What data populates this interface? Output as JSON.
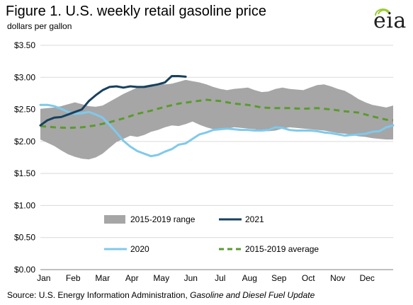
{
  "header": {
    "title": "Figure 1. U.S. weekly retail gasoline price",
    "subtitle": "dollars per gallon"
  },
  "logo": {
    "text": "eia",
    "icon": "eia-logo-icon",
    "accent": "#9acd32"
  },
  "footer": {
    "source_prefix": "Source: U.S. Energy Information  Administration,",
    "source_title": "Gasoline and Diesel Fuel Update"
  },
  "chart_data": {
    "type": "line",
    "x_ticks": [
      "Jan",
      "Feb",
      "Mar",
      "Apr",
      "May",
      "Jun",
      "Jul",
      "Aug",
      "Sep",
      "Oct",
      "Nov",
      "Dec"
    ],
    "y_ticks": [
      "$0.00",
      "$0.50",
      "$1.00",
      "$1.50",
      "$2.00",
      "$2.50",
      "$3.00",
      "$3.50"
    ],
    "ylim": [
      0,
      3.5
    ],
    "xlim": [
      1,
      52
    ],
    "grid": "horizontal",
    "legend_position": "center",
    "range_band": {
      "name": "2015-2019 range",
      "color": "#a6a6a6",
      "weeks": [
        1,
        2,
        3,
        4,
        5,
        6,
        7,
        8,
        9,
        10,
        11,
        12,
        13,
        14,
        15,
        16,
        17,
        18,
        19,
        20,
        21,
        22,
        23,
        24,
        25,
        26,
        27,
        28,
        29,
        30,
        31,
        32,
        33,
        34,
        35,
        36,
        37,
        38,
        39,
        40,
        41,
        42,
        43,
        44,
        45,
        46,
        47,
        48,
        49,
        50,
        51,
        52
      ],
      "high": [
        2.51,
        2.52,
        2.53,
        2.55,
        2.58,
        2.61,
        2.58,
        2.55,
        2.54,
        2.56,
        2.62,
        2.68,
        2.74,
        2.79,
        2.84,
        2.87,
        2.89,
        2.9,
        2.89,
        2.9,
        2.93,
        2.96,
        2.94,
        2.92,
        2.89,
        2.85,
        2.82,
        2.8,
        2.82,
        2.83,
        2.84,
        2.8,
        2.77,
        2.78,
        2.82,
        2.84,
        2.82,
        2.81,
        2.8,
        2.84,
        2.88,
        2.89,
        2.86,
        2.82,
        2.79,
        2.73,
        2.66,
        2.61,
        2.57,
        2.55,
        2.53,
        2.56
      ],
      "low": [
        2.03,
        1.98,
        1.93,
        1.86,
        1.8,
        1.76,
        1.73,
        1.72,
        1.75,
        1.81,
        1.9,
        1.99,
        2.04,
        2.09,
        2.07,
        2.1,
        2.15,
        2.18,
        2.22,
        2.25,
        2.24,
        2.27,
        2.31,
        2.26,
        2.22,
        2.19,
        2.18,
        2.2,
        2.22,
        2.21,
        2.2,
        2.19,
        2.17,
        2.16,
        2.17,
        2.2,
        2.22,
        2.21,
        2.2,
        2.19,
        2.18,
        2.17,
        2.15,
        2.13,
        2.12,
        2.1,
        2.08,
        2.07,
        2.05,
        2.04,
        2.03,
        2.03
      ]
    },
    "series": [
      {
        "name": "2015-2019 average",
        "color": "#5b9a2f",
        "dash": true,
        "weeks": [
          1,
          3,
          5,
          7,
          9,
          11,
          13,
          15,
          17,
          19,
          21,
          23,
          25,
          27,
          29,
          31,
          33,
          35,
          37,
          39,
          41,
          43,
          45,
          47,
          49,
          51,
          52
        ],
        "values": [
          2.24,
          2.22,
          2.21,
          2.22,
          2.25,
          2.3,
          2.36,
          2.43,
          2.48,
          2.54,
          2.59,
          2.62,
          2.65,
          2.63,
          2.59,
          2.57,
          2.53,
          2.52,
          2.52,
          2.51,
          2.52,
          2.5,
          2.47,
          2.45,
          2.39,
          2.34,
          2.33
        ]
      },
      {
        "name": "2020",
        "color": "#7fc9ec",
        "dash": false,
        "weeks": [
          1,
          2,
          3,
          4,
          5,
          6,
          7,
          8,
          9,
          10,
          11,
          12,
          13,
          14,
          15,
          16,
          17,
          18,
          19,
          20,
          21,
          22,
          23,
          24,
          25,
          26,
          27,
          28,
          29,
          30,
          31,
          32,
          33,
          34,
          35,
          36,
          37,
          38,
          39,
          40,
          41,
          42,
          43,
          44,
          45,
          46,
          47,
          48,
          49,
          50,
          51,
          52
        ],
        "values": [
          2.57,
          2.57,
          2.55,
          2.51,
          2.46,
          2.43,
          2.44,
          2.46,
          2.42,
          2.37,
          2.26,
          2.14,
          2.01,
          1.92,
          1.85,
          1.81,
          1.77,
          1.79,
          1.84,
          1.88,
          1.95,
          1.97,
          2.04,
          2.11,
          2.14,
          2.18,
          2.19,
          2.2,
          2.19,
          2.18,
          2.18,
          2.17,
          2.17,
          2.18,
          2.22,
          2.21,
          2.18,
          2.17,
          2.17,
          2.17,
          2.16,
          2.14,
          2.13,
          2.11,
          2.09,
          2.1,
          2.11,
          2.12,
          2.15,
          2.16,
          2.22,
          2.25
        ]
      },
      {
        "name": "2021",
        "color": "#17415f",
        "dash": false,
        "weeks": [
          1,
          2,
          3,
          4,
          5,
          6,
          7,
          8,
          9,
          10,
          11,
          12,
          13,
          14,
          15,
          16,
          17,
          18,
          19,
          20,
          21,
          22
        ],
        "values": [
          2.25,
          2.33,
          2.37,
          2.38,
          2.42,
          2.46,
          2.5,
          2.63,
          2.72,
          2.8,
          2.85,
          2.86,
          2.84,
          2.86,
          2.85,
          2.85,
          2.87,
          2.89,
          2.92,
          3.02,
          3.02,
          3.01
        ]
      }
    ]
  }
}
